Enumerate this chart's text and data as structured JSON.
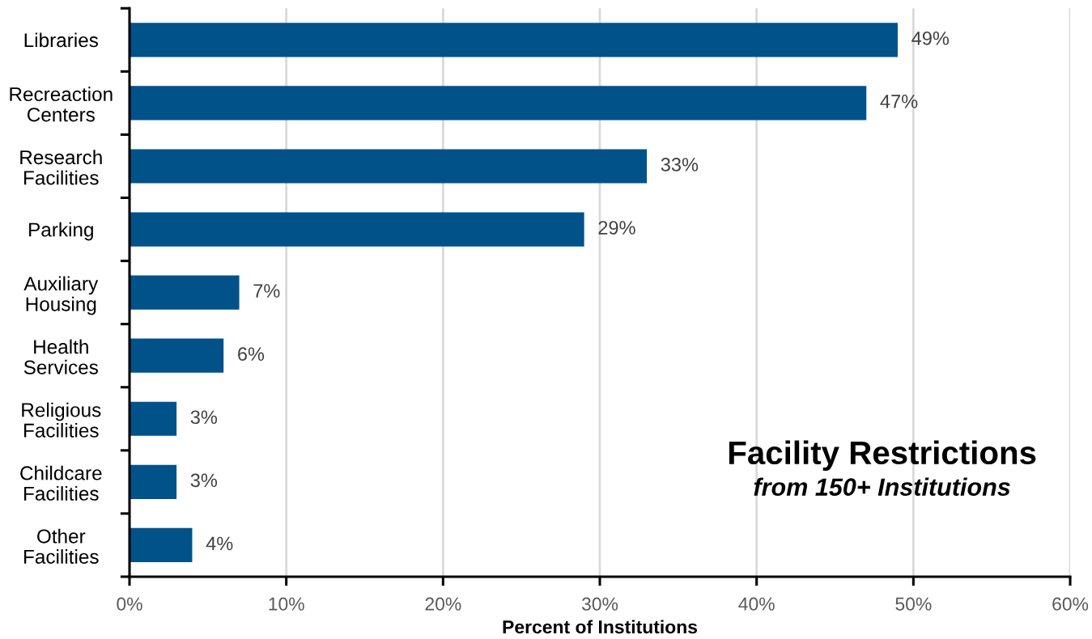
{
  "chart_data": {
    "type": "bar",
    "orientation": "horizontal",
    "title": "Facility Restrictions",
    "subtitle": "from 150+ Institutions",
    "xlabel": "Percent of Institutions",
    "categories": [
      "Libraries",
      "Recreaction Centers",
      "Research Facilities",
      "Parking",
      "Auxiliary Housing",
      "Health Services",
      "Religious Facilities",
      "Childcare Facilities",
      "Other Facilities"
    ],
    "values": [
      49,
      47,
      33,
      29,
      7,
      6,
      3,
      3,
      4
    ],
    "value_labels": [
      "49%",
      "47%",
      "33%",
      "29%",
      "7%",
      "6%",
      "3%",
      "3%",
      "4%"
    ],
    "color": "#02528a",
    "xlim": [
      0,
      60
    ],
    "xticks": [
      {
        "value": 0,
        "label": "0%"
      },
      {
        "value": 10,
        "label": "10%"
      },
      {
        "value": 20,
        "label": "20%"
      },
      {
        "value": 30,
        "label": "30%"
      },
      {
        "value": 40,
        "label": "40%"
      },
      {
        "value": 50,
        "label": "50%"
      },
      {
        "value": 60,
        "label": "60%"
      }
    ],
    "grid": "x"
  }
}
